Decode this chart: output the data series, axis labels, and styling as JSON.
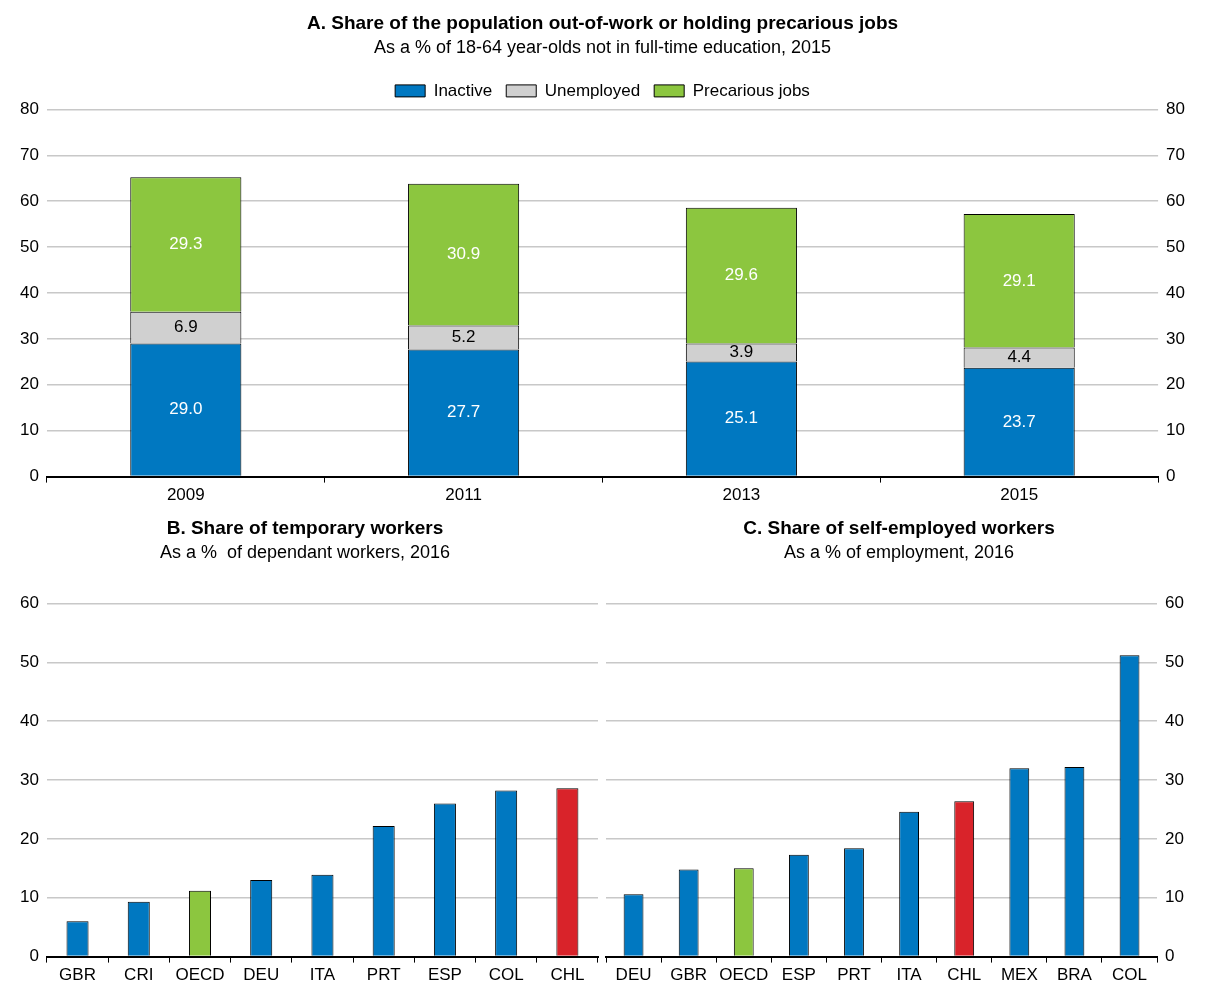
{
  "chart_data": [
    {
      "type": "bar",
      "title": "A. Share of the population out-of-work or holding precarious jobs",
      "subtitle": "As a % of 18-64 year-olds not in full-time education, 2015",
      "categories": [
        "2009",
        "2011",
        "2013",
        "2015"
      ],
      "stacked": true,
      "series": [
        {
          "name": "Inactive",
          "color": "#0078c1",
          "values": [
            29.0,
            27.7,
            25.1,
            23.7
          ],
          "value_labels": [
            "29.0",
            "27.7",
            "25.1",
            "23.7"
          ]
        },
        {
          "name": "Unemployed",
          "color": "#d0d0d0",
          "values": [
            6.9,
            5.2,
            3.9,
            4.4
          ],
          "value_labels": [
            "6.9",
            "5.2",
            "3.9",
            "4.4"
          ]
        },
        {
          "name": "Precarious jobs",
          "color": "#8cc63f",
          "values": [
            29.3,
            30.9,
            29.6,
            29.1
          ],
          "value_labels": [
            "29.3",
            "30.9",
            "29.6",
            "29.1"
          ]
        }
      ],
      "ylim": [
        0,
        80
      ],
      "yticks": [
        0,
        10,
        20,
        30,
        40,
        50,
        60,
        70,
        80
      ],
      "y2lim": [
        0,
        80
      ],
      "y2ticks": [
        0,
        10,
        20,
        30,
        40,
        50,
        60,
        70,
        80
      ],
      "grid": "y",
      "legend": "top"
    },
    {
      "type": "bar",
      "title": "B. Share of temporary workers",
      "subtitle": "As a %  of dependant workers, 2016",
      "categories": [
        "GBR",
        "CRI",
        "OECD",
        "DEU",
        "ITA",
        "PRT",
        "ESP",
        "COL",
        "CHL"
      ],
      "values": [
        6.0,
        9.3,
        11.2,
        13.0,
        13.9,
        22.2,
        26.0,
        28.2,
        28.6
      ],
      "colors": [
        "#0078c1",
        "#0078c1",
        "#8cc63f",
        "#0078c1",
        "#0078c1",
        "#0078c1",
        "#0078c1",
        "#0078c1",
        "#d9232a"
      ],
      "ylim": [
        0,
        60
      ],
      "yticks": [
        0,
        10,
        20,
        30,
        40,
        50,
        60
      ],
      "grid": "y"
    },
    {
      "type": "bar",
      "title": "C. Share of self-employed workers",
      "subtitle": "As a % of employment, 2016",
      "categories": [
        "DEU",
        "GBR",
        "OECD",
        "ESP",
        "PRT",
        "ITA",
        "CHL",
        "MEX",
        "BRA",
        "COL"
      ],
      "series": [
        {
          "axis": "y2",
          "values": [
            10.6,
            14.8,
            15.0,
            17.3,
            18.4,
            24.6,
            26.4,
            32.0,
            32.2,
            51.2
          ],
          "colors": [
            "#0078c1",
            "#0078c1",
            "#8cc63f",
            "#0078c1",
            "#0078c1",
            "#0078c1",
            "#d9232a",
            "#0078c1",
            "#0078c1",
            "#0078c1"
          ]
        }
      ],
      "y2lim": [
        0,
        60
      ],
      "y2ticks": [
        0,
        10,
        20,
        30,
        40,
        50,
        60
      ],
      "grid": "y"
    }
  ]
}
